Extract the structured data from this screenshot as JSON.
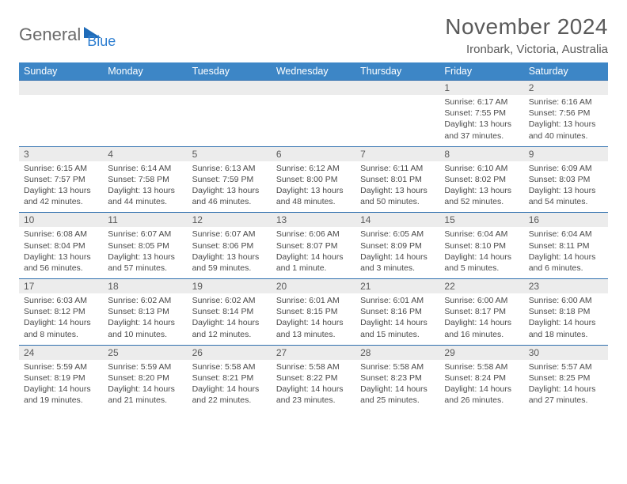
{
  "logo": {
    "part1": "General",
    "part2": "Blue"
  },
  "title": "November 2024",
  "subtitle": "Ironbark, Victoria, Australia",
  "colors": {
    "header_bg": "#3d86c6",
    "header_text": "#ffffff",
    "date_row_bg": "#ececec",
    "border": "#2f6fae",
    "body_text": "#4a4a4a",
    "title_text": "#5a5a5a",
    "logo_gray": "#6a6a6a",
    "logo_blue": "#2f7fd1"
  },
  "day_headers": [
    "Sunday",
    "Monday",
    "Tuesday",
    "Wednesday",
    "Thursday",
    "Friday",
    "Saturday"
  ],
  "weeks": [
    {
      "dates": [
        "",
        "",
        "",
        "",
        "",
        "1",
        "2"
      ],
      "cells": [
        null,
        null,
        null,
        null,
        null,
        {
          "sunrise": "Sunrise: 6:17 AM",
          "sunset": "Sunset: 7:55 PM",
          "daylight1": "Daylight: 13 hours",
          "daylight2": "and 37 minutes."
        },
        {
          "sunrise": "Sunrise: 6:16 AM",
          "sunset": "Sunset: 7:56 PM",
          "daylight1": "Daylight: 13 hours",
          "daylight2": "and 40 minutes."
        }
      ]
    },
    {
      "dates": [
        "3",
        "4",
        "5",
        "6",
        "7",
        "8",
        "9"
      ],
      "cells": [
        {
          "sunrise": "Sunrise: 6:15 AM",
          "sunset": "Sunset: 7:57 PM",
          "daylight1": "Daylight: 13 hours",
          "daylight2": "and 42 minutes."
        },
        {
          "sunrise": "Sunrise: 6:14 AM",
          "sunset": "Sunset: 7:58 PM",
          "daylight1": "Daylight: 13 hours",
          "daylight2": "and 44 minutes."
        },
        {
          "sunrise": "Sunrise: 6:13 AM",
          "sunset": "Sunset: 7:59 PM",
          "daylight1": "Daylight: 13 hours",
          "daylight2": "and 46 minutes."
        },
        {
          "sunrise": "Sunrise: 6:12 AM",
          "sunset": "Sunset: 8:00 PM",
          "daylight1": "Daylight: 13 hours",
          "daylight2": "and 48 minutes."
        },
        {
          "sunrise": "Sunrise: 6:11 AM",
          "sunset": "Sunset: 8:01 PM",
          "daylight1": "Daylight: 13 hours",
          "daylight2": "and 50 minutes."
        },
        {
          "sunrise": "Sunrise: 6:10 AM",
          "sunset": "Sunset: 8:02 PM",
          "daylight1": "Daylight: 13 hours",
          "daylight2": "and 52 minutes."
        },
        {
          "sunrise": "Sunrise: 6:09 AM",
          "sunset": "Sunset: 8:03 PM",
          "daylight1": "Daylight: 13 hours",
          "daylight2": "and 54 minutes."
        }
      ]
    },
    {
      "dates": [
        "10",
        "11",
        "12",
        "13",
        "14",
        "15",
        "16"
      ],
      "cells": [
        {
          "sunrise": "Sunrise: 6:08 AM",
          "sunset": "Sunset: 8:04 PM",
          "daylight1": "Daylight: 13 hours",
          "daylight2": "and 56 minutes."
        },
        {
          "sunrise": "Sunrise: 6:07 AM",
          "sunset": "Sunset: 8:05 PM",
          "daylight1": "Daylight: 13 hours",
          "daylight2": "and 57 minutes."
        },
        {
          "sunrise": "Sunrise: 6:07 AM",
          "sunset": "Sunset: 8:06 PM",
          "daylight1": "Daylight: 13 hours",
          "daylight2": "and 59 minutes."
        },
        {
          "sunrise": "Sunrise: 6:06 AM",
          "sunset": "Sunset: 8:07 PM",
          "daylight1": "Daylight: 14 hours",
          "daylight2": "and 1 minute."
        },
        {
          "sunrise": "Sunrise: 6:05 AM",
          "sunset": "Sunset: 8:09 PM",
          "daylight1": "Daylight: 14 hours",
          "daylight2": "and 3 minutes."
        },
        {
          "sunrise": "Sunrise: 6:04 AM",
          "sunset": "Sunset: 8:10 PM",
          "daylight1": "Daylight: 14 hours",
          "daylight2": "and 5 minutes."
        },
        {
          "sunrise": "Sunrise: 6:04 AM",
          "sunset": "Sunset: 8:11 PM",
          "daylight1": "Daylight: 14 hours",
          "daylight2": "and 6 minutes."
        }
      ]
    },
    {
      "dates": [
        "17",
        "18",
        "19",
        "20",
        "21",
        "22",
        "23"
      ],
      "cells": [
        {
          "sunrise": "Sunrise: 6:03 AM",
          "sunset": "Sunset: 8:12 PM",
          "daylight1": "Daylight: 14 hours",
          "daylight2": "and 8 minutes."
        },
        {
          "sunrise": "Sunrise: 6:02 AM",
          "sunset": "Sunset: 8:13 PM",
          "daylight1": "Daylight: 14 hours",
          "daylight2": "and 10 minutes."
        },
        {
          "sunrise": "Sunrise: 6:02 AM",
          "sunset": "Sunset: 8:14 PM",
          "daylight1": "Daylight: 14 hours",
          "daylight2": "and 12 minutes."
        },
        {
          "sunrise": "Sunrise: 6:01 AM",
          "sunset": "Sunset: 8:15 PM",
          "daylight1": "Daylight: 14 hours",
          "daylight2": "and 13 minutes."
        },
        {
          "sunrise": "Sunrise: 6:01 AM",
          "sunset": "Sunset: 8:16 PM",
          "daylight1": "Daylight: 14 hours",
          "daylight2": "and 15 minutes."
        },
        {
          "sunrise": "Sunrise: 6:00 AM",
          "sunset": "Sunset: 8:17 PM",
          "daylight1": "Daylight: 14 hours",
          "daylight2": "and 16 minutes."
        },
        {
          "sunrise": "Sunrise: 6:00 AM",
          "sunset": "Sunset: 8:18 PM",
          "daylight1": "Daylight: 14 hours",
          "daylight2": "and 18 minutes."
        }
      ]
    },
    {
      "dates": [
        "24",
        "25",
        "26",
        "27",
        "28",
        "29",
        "30"
      ],
      "cells": [
        {
          "sunrise": "Sunrise: 5:59 AM",
          "sunset": "Sunset: 8:19 PM",
          "daylight1": "Daylight: 14 hours",
          "daylight2": "and 19 minutes."
        },
        {
          "sunrise": "Sunrise: 5:59 AM",
          "sunset": "Sunset: 8:20 PM",
          "daylight1": "Daylight: 14 hours",
          "daylight2": "and 21 minutes."
        },
        {
          "sunrise": "Sunrise: 5:58 AM",
          "sunset": "Sunset: 8:21 PM",
          "daylight1": "Daylight: 14 hours",
          "daylight2": "and 22 minutes."
        },
        {
          "sunrise": "Sunrise: 5:58 AM",
          "sunset": "Sunset: 8:22 PM",
          "daylight1": "Daylight: 14 hours",
          "daylight2": "and 23 minutes."
        },
        {
          "sunrise": "Sunrise: 5:58 AM",
          "sunset": "Sunset: 8:23 PM",
          "daylight1": "Daylight: 14 hours",
          "daylight2": "and 25 minutes."
        },
        {
          "sunrise": "Sunrise: 5:58 AM",
          "sunset": "Sunset: 8:24 PM",
          "daylight1": "Daylight: 14 hours",
          "daylight2": "and 26 minutes."
        },
        {
          "sunrise": "Sunrise: 5:57 AM",
          "sunset": "Sunset: 8:25 PM",
          "daylight1": "Daylight: 14 hours",
          "daylight2": "and 27 minutes."
        }
      ]
    }
  ]
}
